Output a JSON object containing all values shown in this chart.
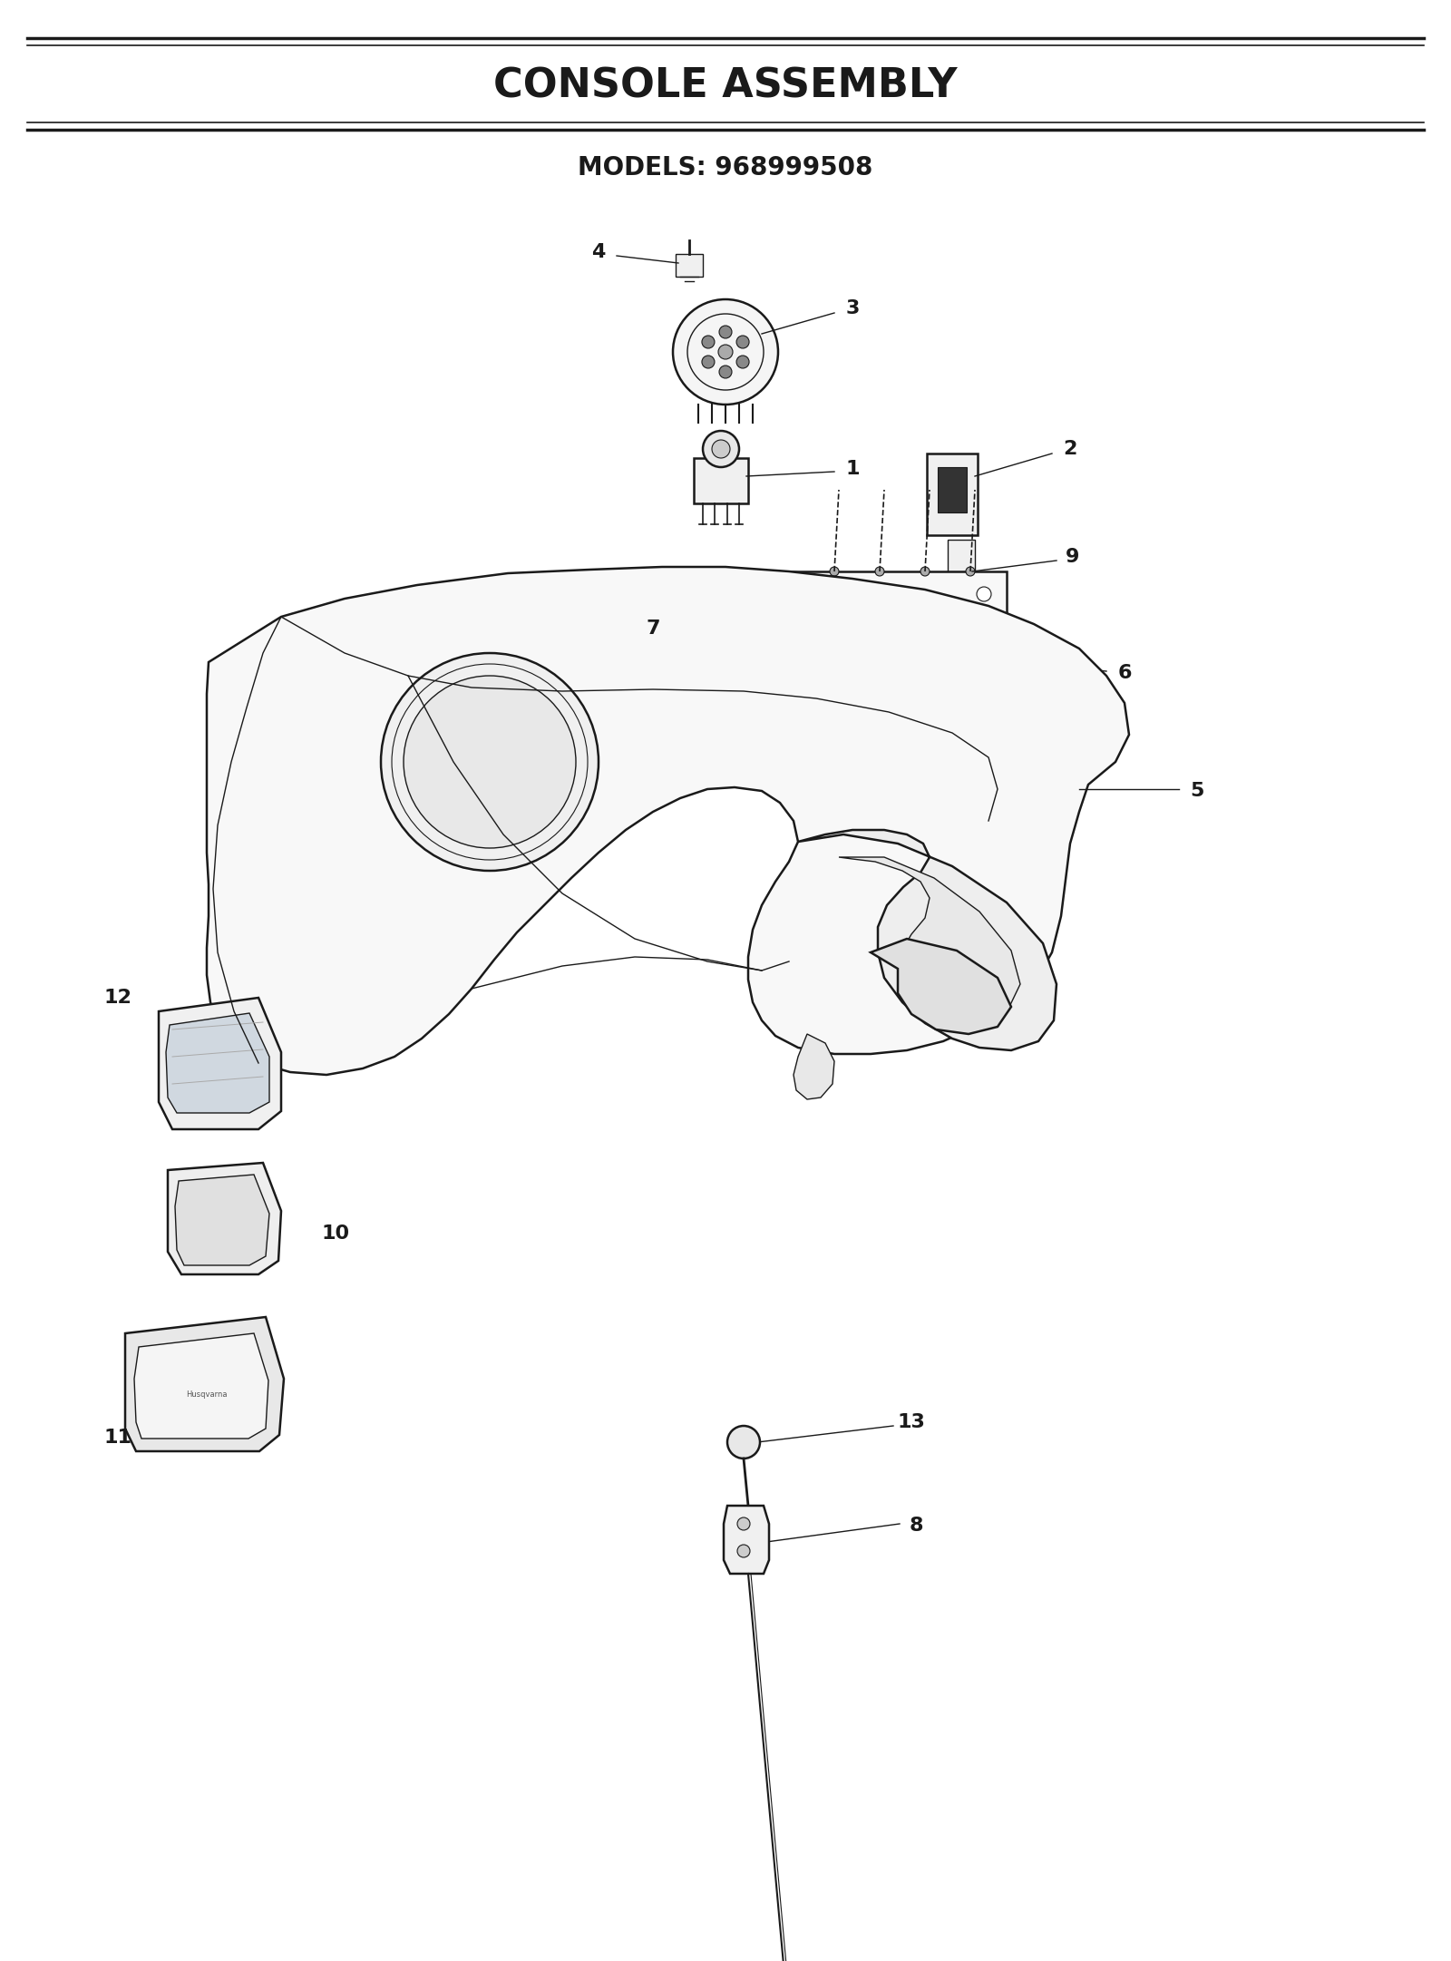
{
  "title": "CONSOLE ASSEMBLY",
  "subtitle": "MODELS: 968999508",
  "bg_color": "#ffffff",
  "lc": "#1a1a1a",
  "title_fontsize": 32,
  "subtitle_fontsize": 20,
  "label_fontsize": 16,
  "fig_width": 16.0,
  "fig_height": 21.62
}
